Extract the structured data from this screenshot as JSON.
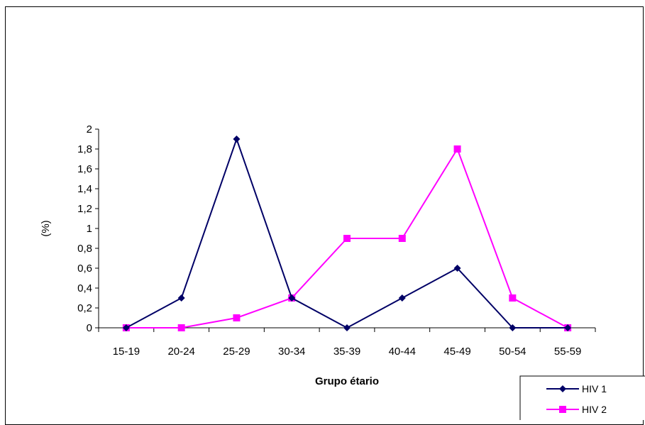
{
  "chart_data": {
    "type": "line",
    "title": "",
    "xlabel": "Grupo étario",
    "ylabel": "(%)",
    "categories": [
      "15-19",
      "20-24",
      "25-29",
      "30-34",
      "35-39",
      "40-44",
      "45-49",
      "50-54",
      "55-59"
    ],
    "ylim": [
      0,
      2
    ],
    "yticks": [
      "0",
      "0,2",
      "0,4",
      "0,6",
      "0,8",
      "1",
      "1,2",
      "1,4",
      "1,6",
      "1,8",
      "2"
    ],
    "grid": false,
    "legend_position": "bottom-right",
    "series": [
      {
        "name": "HIV 1",
        "color": "#000066",
        "marker": "diamond",
        "values": [
          0,
          0.3,
          1.9,
          0.3,
          0,
          0.3,
          0.6,
          0,
          0
        ]
      },
      {
        "name": "HIV 2",
        "color": "#FF00FF",
        "marker": "square",
        "values": [
          0,
          0,
          0.1,
          0.3,
          0.9,
          0.9,
          1.8,
          0.3,
          0
        ]
      }
    ]
  }
}
